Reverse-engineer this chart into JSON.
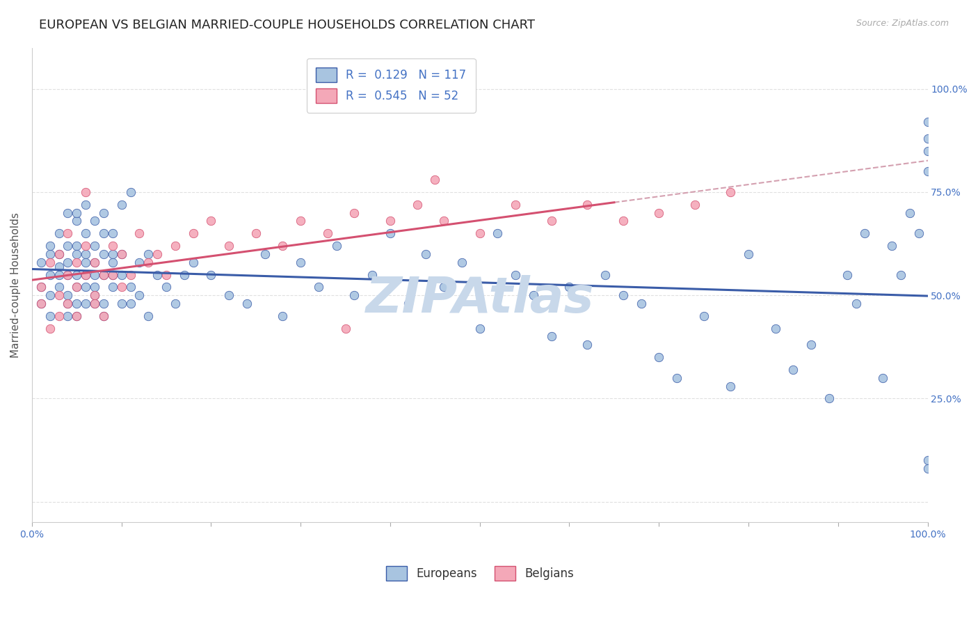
{
  "title": "EUROPEAN VS BELGIAN MARRIED-COUPLE HOUSEHOLDS CORRELATION CHART",
  "source_text": "Source: ZipAtlas.com",
  "ylabel": "Married-couple Households",
  "watermark": "ZIPAtlas",
  "xlim": [
    0.0,
    1.0
  ],
  "ylim": [
    -0.05,
    1.1
  ],
  "R_european": 0.129,
  "N_european": 117,
  "R_belgian": 0.545,
  "N_belgian": 52,
  "color_european": "#a8c4e0",
  "color_belgian": "#f4a8b8",
  "color_trend_european": "#3a5ca8",
  "color_trend_belgian": "#d45070",
  "color_dashed": "#d4a0b0",
  "legend_label_european": "Europeans",
  "legend_label_belgian": "Belgians",
  "background_color": "#ffffff",
  "title_fontsize": 13,
  "axis_label_fontsize": 11,
  "tick_fontsize": 10,
  "legend_fontsize": 12,
  "watermark_fontsize": 52,
  "watermark_color": "#c8d8ea",
  "eu_x": [
    0.01,
    0.01,
    0.01,
    0.02,
    0.02,
    0.02,
    0.02,
    0.02,
    0.03,
    0.03,
    0.03,
    0.03,
    0.03,
    0.04,
    0.04,
    0.04,
    0.04,
    0.04,
    0.04,
    0.04,
    0.05,
    0.05,
    0.05,
    0.05,
    0.05,
    0.05,
    0.05,
    0.05,
    0.06,
    0.06,
    0.06,
    0.06,
    0.06,
    0.06,
    0.06,
    0.07,
    0.07,
    0.07,
    0.07,
    0.07,
    0.07,
    0.07,
    0.08,
    0.08,
    0.08,
    0.08,
    0.08,
    0.08,
    0.09,
    0.09,
    0.09,
    0.09,
    0.09,
    0.1,
    0.1,
    0.1,
    0.1,
    0.11,
    0.11,
    0.11,
    0.12,
    0.12,
    0.13,
    0.13,
    0.14,
    0.15,
    0.16,
    0.17,
    0.18,
    0.2,
    0.22,
    0.24,
    0.26,
    0.28,
    0.3,
    0.32,
    0.34,
    0.36,
    0.38,
    0.4,
    0.42,
    0.44,
    0.46,
    0.48,
    0.5,
    0.52,
    0.54,
    0.56,
    0.58,
    0.6,
    0.62,
    0.64,
    0.66,
    0.68,
    0.7,
    0.72,
    0.75,
    0.78,
    0.8,
    0.83,
    0.85,
    0.87,
    0.89,
    0.91,
    0.92,
    0.93,
    0.95,
    0.96,
    0.97,
    0.98,
    0.99,
    1.0,
    1.0,
    1.0,
    1.0,
    1.0,
    1.0
  ],
  "eu_y": [
    0.52,
    0.58,
    0.48,
    0.6,
    0.55,
    0.5,
    0.45,
    0.62,
    0.57,
    0.52,
    0.65,
    0.6,
    0.55,
    0.7,
    0.5,
    0.58,
    0.45,
    0.62,
    0.55,
    0.48,
    0.62,
    0.55,
    0.68,
    0.45,
    0.52,
    0.6,
    0.48,
    0.7,
    0.55,
    0.6,
    0.48,
    0.65,
    0.52,
    0.58,
    0.72,
    0.5,
    0.55,
    0.62,
    0.48,
    0.68,
    0.58,
    0.52,
    0.6,
    0.45,
    0.55,
    0.65,
    0.7,
    0.48,
    0.6,
    0.55,
    0.52,
    0.58,
    0.65,
    0.48,
    0.72,
    0.55,
    0.6,
    0.52,
    0.48,
    0.75,
    0.5,
    0.58,
    0.6,
    0.45,
    0.55,
    0.52,
    0.48,
    0.55,
    0.58,
    0.55,
    0.5,
    0.48,
    0.6,
    0.45,
    0.58,
    0.52,
    0.62,
    0.5,
    0.55,
    0.65,
    0.48,
    0.6,
    0.52,
    0.58,
    0.42,
    0.65,
    0.55,
    0.5,
    0.4,
    0.52,
    0.38,
    0.55,
    0.5,
    0.48,
    0.35,
    0.3,
    0.45,
    0.28,
    0.6,
    0.42,
    0.32,
    0.38,
    0.25,
    0.55,
    0.48,
    0.65,
    0.3,
    0.62,
    0.55,
    0.7,
    0.65,
    0.92,
    0.88,
    0.85,
    0.8,
    0.1,
    0.08
  ],
  "be_x": [
    0.01,
    0.01,
    0.02,
    0.02,
    0.03,
    0.03,
    0.03,
    0.04,
    0.04,
    0.04,
    0.05,
    0.05,
    0.05,
    0.06,
    0.06,
    0.06,
    0.07,
    0.07,
    0.07,
    0.08,
    0.08,
    0.09,
    0.09,
    0.1,
    0.1,
    0.11,
    0.12,
    0.13,
    0.14,
    0.15,
    0.16,
    0.18,
    0.2,
    0.22,
    0.25,
    0.28,
    0.3,
    0.33,
    0.36,
    0.4,
    0.43,
    0.46,
    0.5,
    0.54,
    0.58,
    0.62,
    0.66,
    0.7,
    0.74,
    0.78,
    0.45,
    0.35
  ],
  "be_y": [
    0.52,
    0.48,
    0.58,
    0.42,
    0.6,
    0.5,
    0.45,
    0.55,
    0.48,
    0.65,
    0.52,
    0.58,
    0.45,
    0.62,
    0.55,
    0.75,
    0.5,
    0.58,
    0.48,
    0.55,
    0.45,
    0.62,
    0.55,
    0.52,
    0.6,
    0.55,
    0.65,
    0.58,
    0.6,
    0.55,
    0.62,
    0.65,
    0.68,
    0.62,
    0.65,
    0.62,
    0.68,
    0.65,
    0.7,
    0.68,
    0.72,
    0.68,
    0.65,
    0.72,
    0.68,
    0.72,
    0.68,
    0.7,
    0.72,
    0.75,
    0.78,
    0.42
  ]
}
